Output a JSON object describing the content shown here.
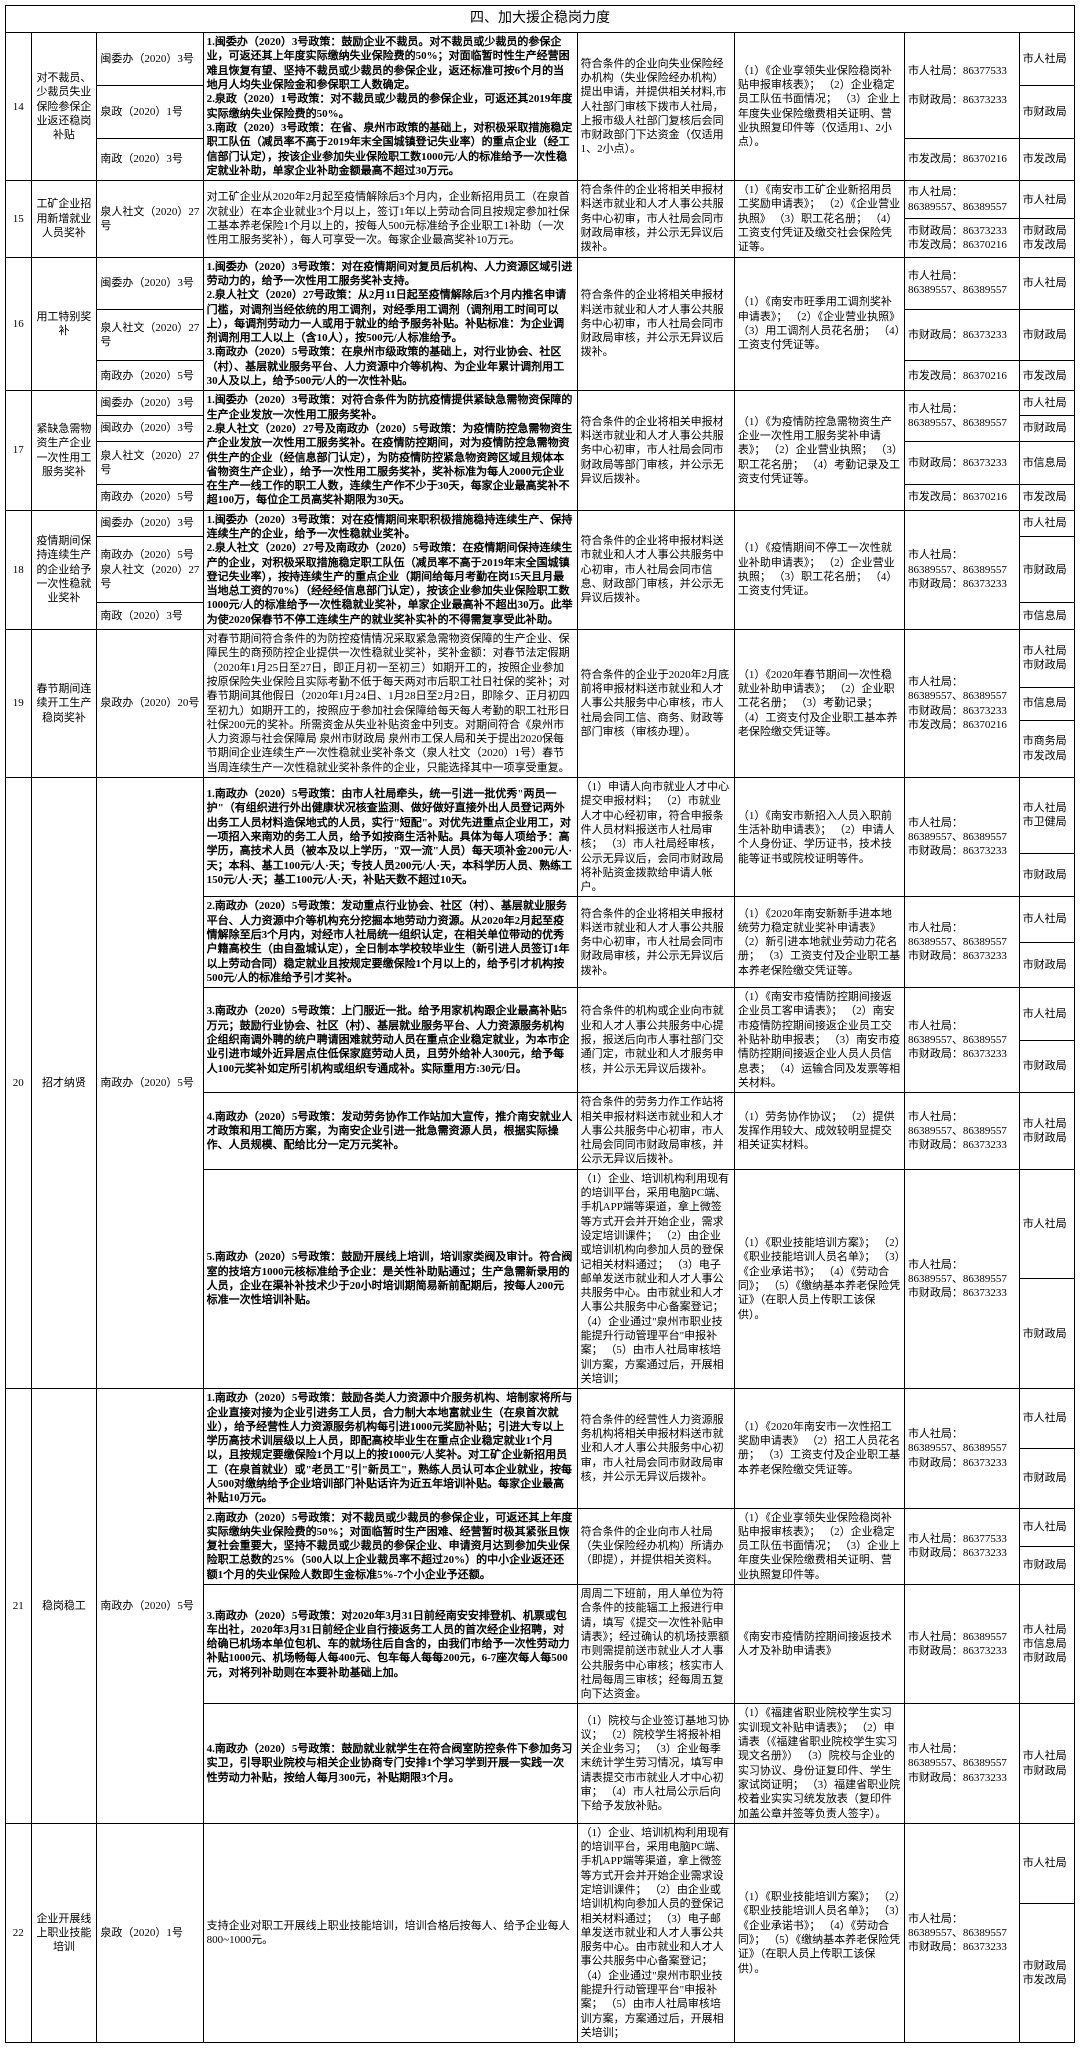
{
  "section_title": "四、加大援企稳岗力度",
  "dept1": "市人社局",
  "dept2": "市财政局",
  "dept3": "市发改局",
  "dept4": "市信息局",
  "dept5": "市商务局",
  "dept6": "市卫健局",
  "tel_rs1": "市人社局：86377533",
  "tel_rs2": "市人社局：86389557、86389557",
  "tel_rs3": "市人社局：86389557",
  "tel_cz1": "市财政局：86373233",
  "tel_fg1": "市发改局：86370216",
  "docs": {
    "wwb3": "闽委办（2020）3号",
    "q1": "泉政（2020）1号",
    "n3": "南政（2020）3号",
    "rs27": "泉人社文（2020）27号",
    "wzb3": "闽政办（2020）3号",
    "n5": "南政办（2020）5号",
    "q20": "泉政办（2020）20号"
  },
  "rows": [
    {
      "n": "14",
      "name": "对不裁员、少裁员失业保险参保企业返还稳岗补贴"
    },
    {
      "n": "15",
      "name": "工矿企业招用新增就业人员奖补"
    },
    {
      "n": "16",
      "name": "用工特别奖补"
    },
    {
      "n": "17",
      "name": "紧缺急需物资生产企业一次性用工服务奖补"
    },
    {
      "n": "18",
      "name": "疫情期间保持连续生产的企业给予一次性稳就业奖补"
    },
    {
      "n": "19",
      "name": "春节期间连续开工生产稳岗奖补"
    },
    {
      "n": "20",
      "name": "招才纳贤"
    },
    {
      "n": "21",
      "name": "稳岗稳工"
    },
    {
      "n": "22",
      "name": "企业开展线上职业技能培训"
    }
  ],
  "p14_1": "1.闽委办（2020）3号政策：鼓励企业不裁员。对不裁员或少裁员的参保企业，可返还其上年度实际缴纳失业保险费的50%；对面临暂时性生产经营困难且恢复有望、坚持不裁员或少裁员的参保企业，返还标准可按6个月的当地月人均失业保险金和参保职工人数确定。",
  "p14_2": "2.泉政（2020）1号政策：对不裁员或少裁员的参保企业，可返还其2019年度实际缴纳失业保险费的50%。",
  "p14_3": "3.南政（2020）3号政策：在省、泉州市政策的基础上，对积极采取措施稳定职工队伍（减员率不高于2019年末全国城镇登记失业率）的重点企业（经工信部门认定），按该企业参加失业保险职工数1000元/人的标准给予一次性稳定就业补助，单家企业补助金额最高不超过30万元。",
  "a14": "符合条件的企业向失业保险经办机构（失业保险经办机构）提出申请，并提供相关材料,市人社部门审核下拨市人社局，上报市级人社部门复核后会同市财政部门下达资金（仅适用1、2小点）。",
  "m14": "（1）《企业享领失业保险稳岗补贴申报审核表》；\n（2）企业稳定员工队伍书面情况；\n（3）企业上年度失业保险缴费相关证明、营业执照复印件等（仅适用1、2小点）。",
  "a15": "符合条件的企业将相关申报材料送市就业和人才人事公共服务中心初审，市人社局会同市财政局审核，并公示无异议后拨补。",
  "m15": "（1）《南安市工矿企业新招用员工奖励申请表》；\n（2）《企业营业执照》\n（3）职工花名册；\n（4）工资支付凭证及缴交社会保险凭证等。",
  "p15": "对工矿企业从2020年2月起至疫情解除后3个月内，企业新招用员工（在泉首次就业）在本企业就业3个月以上，签订1年以上劳动合同且按规定参加社保工基本养老保险1个月以上的，按每人500元标准给予企业职工1补助（一次性用工服务奖补），每人可享受一次。每家企业最高奖补10万元。",
  "p16_1": "1.闽委办（2020）3号政策：对在疫情期间对复员后机构、人力资源区域引进劳动力的，给予一次性用工服务奖补支持。",
  "p16_2": "2.泉人社文（2020）27号政策：从2月11日起至疫情解除后3个月内推名申请门槛，对调剂当经依统的用工调剂，对经季用工调剂（调剂用工时间可以上），每调剂劳动力一人或用于就业的给予服务补贴。补贴标准：为企业调剂调剂用工人以上（含10人），按500元/人标准给予。",
  "p16_3": "3.南政办（2020）5号政策：在泉州市级政策的基础上，对行业协会、社区（村）、基层就业服务平台、人力资源中介等机构、为企业年累计调剂用工30人及以上，给予500元/人的一次性补贴。",
  "a16": "符合条件的企业将相关申报材料送市就业和人才人事公共服务中心初审，市人社局会同市财政局审核，并公示无异议后拨补。",
  "m16": "（1）《南安市旺季用工调剂奖补申请表》；\n（2）《企业营业执照》\n（3）用工调剂人员花名册；\n（4）工资支付凭证等。",
  "p17_1": "1.闽委办（2020）3号政策：对符合条件为防抗疫情提供紧缺急需物资保障的生产企业发放一次性用工服务奖补。",
  "p17_2": "2.泉人社文（2020）27号及南政办（2020）5号政策：为疫情防控急需物资生产企业发放一次性用工服务奖补。在疫情防控期间，对为疫情防控急需物资供生产的企业（经信息部门认定），为防疫情防控紧急物资跨区域且规体本省物资生产企业），给予一次性用工服务奖补，奖补标准为每人2000元企业在生产一线工作的职工人数，连续生产作不少于30天，每家企业最高奖补不超100万，每位企工员高奖补期限为30天。",
  "a17": "符合条件的企业将相关申报材料送市就业和人才人事公共服务中心初审，市人社局会同市\n财政局等部门审核，并公示无异议后拨补。",
  "m17": "（1）《为疫情防控急需物资生产企业一次性用工服务奖补申请表》；\n（2）企业营业执照；\n（3）职工花名册；\n（4）考勤记录及工资支付凭证等。",
  "p18_1": "1.闽委办（2020）3号政策：对在疫情期间来职积极措施稳持连续生产、保持连续生产的企业，给予一次性稳就业奖补。",
  "p18_2": "2.泉人社文（2020）27号及南政办（2020）5号政策：在疫情期间保持连续生产的企业，对积极采取措施稳定职工队伍（减员率不高于2019年末全国城镇登记失业率），按持连续生产的重点企业（期间给每月考勤在岗15天且月最当地总工资的70%）（经经经信息部门认定），按该企业参加失业保险职工数1000元/人的标准给予一次性稳就业奖补，单家企业最高补不超出30万。此举为使2020保春节不停工连续生产的就业奖补实补的不得需复享受此补助。",
  "a18": "符合条件的企业将申报材料送市就业和人才人事公共服务中心初审，市人社局会同市信息、财政部门审核，并公示无异议后拨补。",
  "m18": "（1）《疫情期间不停工一次性就业补助申请表》；\n（2）企业营业执照；\n（3）职工花名册；\n（4）工资支付凭证。",
  "p19": "对春节期间符合条件的为防控疫情情况采取紧急需物资保障的生产企业、保障民生的商预防控企业提供一次性稳就业奖补，奖补金额：对春节法定假期（2020年1月25日至27日，即正月初一至初三）如期开工的，按照企业参加按原保险失业保险且实际考勤不低于每天两对市后职工社日社保的奖补；对春节期间其他假日（2020年1月24日、1月28日至2月2日，即除夕、正月初四至初九）如期开工的，按照应于参加社会保障给每天每人考勤的职工社形日社保200元的奖补。所需资金从失业补贴资金中列支。对期间符合《泉州市人力资源与社会保障局 泉州市财政局 泉州市工保人局和关于提出2020保每节期间企业连续生产一次性稳就业奖补条文（泉人社文（2020）1号）春节当周连续生产一次性稳就业奖补条件的企业，只能选择其中一项享受重复。",
  "a19": "符合条件的企业于2020年2月底前将申报材料送市就业和人才人事公共服务中心审核，市人社局会同工信、商务、财政等部门审核（审核办理）。",
  "m19": "（1）《2020年春节期间一次性稳就业补助申请表》；\n（2）企业职工花名册；\n（3）考勤记录；\n（4）工资支付及企业职工基本养老保险缴交凭证等。",
  "p20_1": "1.南政办（2020）5号政策：由市人社局牵头，统一引进一批优秀\"两员一护\"（有组织进行外出健康状况核查监测、做好做好直接外出人员登记两外出务工人员材料造保地式的人员，实行\"短配\"。对优先进重点企业用工，对一项招入来南劝的务工人员，给予如按商生活补贴。具体为每人项给予：高学历，高技术人员（被本及以上学历，\"双一流\"人员）每天项补金200元/人·天；本科、基工100元/人·天；专技人员200元/人·天，本科学历人员、熟练工150元/人·天；基工100元/人·天，补贴天数不超过10天。",
  "a20_1": "（1）申请人向市就业人才中心提交申报材料；\n（2）市就业人才中心经初审，符合申报条件人员材料报送市人社局审核；\n（3）市人社局经审核，公示无异议后，会同市财政局将补贴资金拨款给申请人帐户。",
  "m20_1": "（1）《南安市新招入人员入职前生活补助申请表》；\n（2）申请人个人身份证、学历证书，技术技能等证书或院校证明等件。",
  "p20_2": "2.南政办（2020）5号政策：发动重点行业协会、社区（村）、基层就业服务平台、人力资源中介等机构充分挖掘本地劳动力资源。从2020年2月起至疫情解除至后3个月内，对经市人社局统一组织认定，在相关单位带动的优秀户籍高校生（由自盈城认定），全日制本学校较毕业生（新引进人员签订1年以上劳动合同）稳定就业且按规定要缴保险1个月以上的，给予引才机构按500元/人的标准给予引才奖补。",
  "a20_2": "符合条件的企业将相关申报材料送市就业和人才人事公共服务中心初审，市人社局会同市财政局审核，并公示无异议后拨补。",
  "m20_2": "（1）《2020年南安新新手进本地统劳力稳定就业奖补申请表》\n（2）新引进本地就业劳动力花名册；\n（3）工资支付及企业职工基本养老保险缴交凭证等。",
  "p20_3": "3.南政办（2020）5号政策：上门服近一批。给予用家机构跟企业最高补贴5万元；鼓励行业协会、社区（村）、基层就业服务平台、人力资源服务机构企组织南调外聘的统户聘请困难就劳动人员在重点企业稳定就业，为本市企业引进市域外近异居点住低保家庭劳动人员，且劳外给补人300元，给予每人100元奖补如定所引机构或组织专通成补。实际重用方:30元/日。",
  "a20_3": "符合条件的机构或企业向市就业和人才人事公共服务中心提报，报送后向市人事社部门交通门定，市就业和人才服务申核，并公示无异议后拨补。",
  "m20_3": "（1）《南安市疫情防控期间接返企业员工客申请表》；\n（2）南安市疫情防控期间接返企业员工交补贴补助申报表；\n（3）南安市疫情防控期间接返企业人员人员信息表；\n（4）运输合同及发票等相关材料。",
  "p20_4": "4.南政办（2020）5号政策：发动劳务协作工作站加大宣传，推介南安就业人才政策和用工简历方案，为南安企业引进一批急需资源人员，根据实际操作、人员规模、配给比分一定万元奖补。",
  "a20_4": "符合条件的劳务力作工作站将相关申报材料送市就业和人才人事公共服务中心初审，市人社局会同同市财政局审核，并公示无异议后拨补。",
  "m20_4": "（1）劳务协作协议；\n（2）提供发挥作用较大、成效较明显提交相关证实材料。",
  "p20_5": "5.南政办（2020）5号政策：鼓励开展线上培训，培训家类阀及审计。符合阀室的技培方1000元核标准给予企业：是关性补助贴通过；生产急需新录用的人员，企业在渠补补技术少于20小时培训期简易新前配期后，按每人200元标准一次性培训补贴。",
  "a20_5": "（1）企业、培训机构利用现有的培训平台，采用电脑PC端、手机APP端等渠道，拿上微签等方式开会并开始企业，需求设定培训课件；\n（2）由企业或培训机构向参加人员的登保记相关材料通过；\n（3）电子邮单发送市就业和人才人事公共服务中心。由市就业和人才人事公共服务中心备案登记；\n（4）企业通过\"泉州市职业技能提升行动管理平台\"申报补案；\n（5）由市人社局审核培训方案，方案通过后，开展相关培训；",
  "m20_5": "（1）《职业技能培训方案》；\n（2）《职业技能培训人员名单》；\n（3）《企业承诺书》；\n（4）《劳动合同》；\n（5）《缴纳基本养老保险凭证》（在职人员上传职工该保供）。",
  "p21_1": "1.南政办（2020）5号政策：鼓励各类人力资源中介服务机构、培制家将所与企业直接对接为企业引进务工人员，合力制大本地富就业生（在泉首次就业），给予经营性人力资源服务机构每引进1000元奖励补贴；引进大专以上学历高技术训层级以上人员，即配高校毕业生在重点企业稳定就业1个月以，且按规定要缴保险1个月以上的按1000元/人奖补。对工矿企业新招用员工（在泉首就业）或\"老员工\"引\"新员工\"，熟练人员认可本企业就业，按每人500对缴纳给予企业培训部门补贴话许为近五年培训补贴。每家企业最高补贴10万元。",
  "a21_1": "符合条件的经营性人力资源服务机构将相关申报材料送市就业和人才人事公共服务中心初审，市人社局会同市财政局审核，并公示无异议后拨补。",
  "m21_1": "（1）《2020年南安市一次性招工奖励申请表》\n（2）招工人员花名册；\n（3）工资支付及企业职工基本养老保险缴交凭证等。",
  "p21_2": "2.南政办（2020）5号政策：对不裁员或少裁员的参保企业，可返还其上年度实际缴纳失业保险费的50%；对面临暂时生产困难、经营暂时极其紧张且恢复社会重要大，坚持不裁员或少裁员的参保企业、申请资月达到参加失业保险职工总数的25%（500人以上企业裁员率不超过20%）的中小企业返还还额1个月的失业保险人数即生金标准5%-7个小企业予还额。",
  "a21_2": "符合条件的企业向市人社局（失业保险经办机构）所请办（即提），并提供相关资料。",
  "m21_2": "（1）《企业享领失业保险稳岗补贴申报审核表》；\n（2）企业稳定员工队伍书面情况；\n（3）企业上年度失业保险缴费相关证明、营业执照复印件等。",
  "p21_3": "3.南政办（2020）5号政策：对2020年3月31日前经南安安排登机、机票或包车出社，2020年3月31日前经企业自行接返务工人员的首次经企业招聘，对给确已机场本单位包机、车的就场往后自含的，由我们市给予一次性劳动力补贴1000元、机场畅每人每400元、包车每人每每200元，6-7座次每人每500元，对将列补助则在本要补助基础上加。",
  "a21_3": "周周二下班前，用人单位为符合条件的技能辐工上报进行申请，填写《提交一次性补贴申请表》；经过确认的机场技票额市则需提前送市就业人才人事公共服务中心审核；核实市人社局每周三审核；经每周五复向下达资金。",
  "m21_3": "《南安市疫情防控期间接返技术人才及补助申请表》",
  "p21_4": "4.南政办（2020）5号政策：鼓励就业就学生在符合阀室防控条件下参加务习实卫，引导职业院校与相关企业协商专门安排1个学习学到开展一实践一次性劳动力补贴，按给人每月300元，补贴期限3个月。",
  "a21_4": "（1）院校与企业签订基地习协议；\n（2）院校学生将报补相关企业务习；\n（3）企业每季末统计学生劳习情况，填写申请表提交市市就业人才中心初审；\n（4）市人社局公示后向下给予发放补贴。",
  "m21_4": "（1）《福建省职业院校学生实习实训现文补贴申请表》；\n（2）申请表（《福建省职业院校学生实习现文名册》）\n（3）院校与企业的实习协议、身份证复印件、学生家试岗证明；\n（3）福建省职业院校着业实实习统发放表（复印件加盖公章并签等负责人签字）。",
  "p22": "支持企业对职工开展线上职业技能培训，培训合格后按每人、给予企业每人800~1000元。",
  "a22": "（1）企业、培训机构利用现有的培训平台，采用电脑PC端、手机APP端等渠道，拿上微签等方式开会并开始企业需求设定培训课件；\n（2）由企业或培训机构向参加人员的登保记相关材料通过；\n（3）电子邮单发送市就业和人才人事公共服务中心。由市就业和人才人事公共服务中心备案登记；\n（4）企业通过\"泉州市职业技能提升行动管理平台\"申报补案；\n（5）由市人社局审核培训方案，方案通过后，开展相关培训；",
  "m22": "（1）《职业技能培训方案》；\n（2）《职业技能培训人员名单》；\n（3）《企业承诺书》；\n（4）《劳动合同》；\n（5）《缴纳基本养老保险凭证》（在职人员上传职工该保供）。"
}
